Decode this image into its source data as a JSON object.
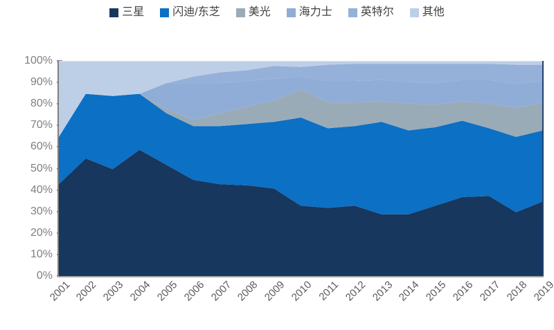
{
  "chart_data": {
    "type": "area",
    "stacked": true,
    "percent_stacked": true,
    "title": "",
    "xlabel": "",
    "ylabel": "",
    "ylim": [
      0,
      100
    ],
    "grid": false,
    "legend_position": "top",
    "x": [
      2001,
      2002,
      2003,
      2004,
      2005,
      2006,
      2007,
      2008,
      2009,
      2010,
      2011,
      2012,
      2013,
      2014,
      2015,
      2016,
      2017,
      2018,
      2019
    ],
    "series": [
      {
        "id": "samsung",
        "label": "三星",
        "color": "#17375e",
        "values": [
          43,
          55,
          50,
          59,
          52,
          45,
          43,
          42.5,
          41,
          33,
          32,
          33,
          29,
          29,
          33,
          37,
          37.5,
          30,
          35
        ]
      },
      {
        "id": "sandisk-toshiba",
        "label": "闪迪/东芝",
        "color": "#0c70c4",
        "values": [
          22,
          30,
          34,
          26,
          24,
          25,
          27,
          28.5,
          31,
          41,
          37,
          37,
          43,
          39,
          36.5,
          35.5,
          31.5,
          35,
          33
        ]
      },
      {
        "id": "micron",
        "label": "美光",
        "color": "#9aabb8",
        "values": [
          0,
          0,
          0,
          0,
          2,
          3,
          6,
          8,
          10,
          13,
          12,
          11,
          9.5,
          12.5,
          10.5,
          9,
          11.5,
          13.5,
          13
        ]
      },
      {
        "id": "hynix",
        "label": "海力士",
        "color": "#8fadd6",
        "values": [
          0,
          0,
          0,
          0,
          12,
          17,
          14,
          12,
          10,
          6,
          10,
          10,
          10,
          10,
          10,
          10,
          11,
          11,
          10
        ]
      },
      {
        "id": "intel",
        "label": "英特尔",
        "color": "#95b1d9",
        "values": [
          0,
          0,
          0,
          0,
          0,
          3,
          5,
          5,
          6,
          4.5,
          7.5,
          8,
          7.5,
          8.5,
          9,
          7.5,
          7.5,
          9,
          7.5
        ]
      },
      {
        "id": "others",
        "label": "其他",
        "color": "#bdcfe6",
        "values": [
          35,
          15,
          16,
          15,
          10,
          7,
          5,
          4,
          2,
          2.5,
          1.5,
          1,
          1,
          1,
          1,
          1,
          1,
          1.5,
          1.5
        ]
      }
    ]
  },
  "axis": {
    "y_tick_labels": [
      "100%",
      "90%",
      "80%",
      "70%",
      "60%",
      "50%",
      "40%",
      "30%",
      "20%",
      "10%",
      "0%"
    ],
    "x_tick_labels": [
      "2001",
      "2002",
      "2003",
      "2004",
      "2005",
      "2006",
      "2007",
      "2008",
      "2009",
      "2010",
      "2011",
      "2012",
      "2013",
      "2014",
      "2015",
      "2016",
      "2017",
      "2018",
      "2019"
    ]
  },
  "colors": {
    "axis_line": "#808080",
    "y_label_text": "#7f7f7f",
    "x_label_text": "#595959",
    "legend_text": "#404040",
    "plot_bottom_border": "#a6a6a6",
    "plot_right_border": "#24406e"
  }
}
